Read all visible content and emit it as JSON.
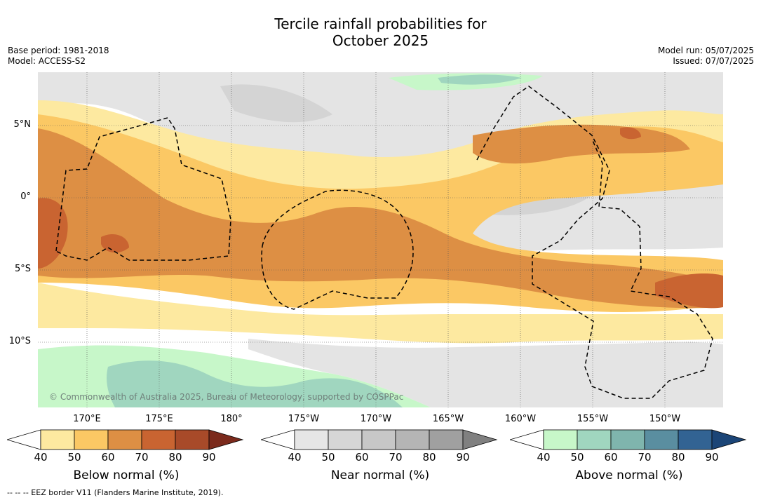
{
  "title_line1": "Tercile rainfall probabilities for",
  "title_line2": "October 2025",
  "meta_left": {
    "base_period": "Base period: 1981-2018",
    "model": "Model: ACCESS-S2"
  },
  "meta_right": {
    "model_run": "Model run: 05/07/2025",
    "issued": "Issued: 07/07/2025"
  },
  "lon_ticks": [
    "170°E",
    "175°E",
    "180°",
    "175°W",
    "170°W",
    "165°W",
    "160°W",
    "155°W",
    "150°W"
  ],
  "lat_ticks": [
    "5°N",
    "0°",
    "5°S",
    "10°S"
  ],
  "copyright": "© Commonwealth of Australia 2025, Bureau of Meteorology, supported by COSPPac",
  "eez_note": "-- -- -- EEZ border V11 (Flanders Marine Institute, 2019).",
  "colorbars": [
    {
      "label": "Below normal (%)",
      "ticks": [
        "40",
        "50",
        "60",
        "70",
        "80",
        "90"
      ],
      "colors": [
        "#fde9a0",
        "#fbc864",
        "#dd8f44",
        "#c96431",
        "#a84a29",
        "#7b2a1c"
      ]
    },
    {
      "label": "Near normal (%)",
      "ticks": [
        "40",
        "50",
        "60",
        "70",
        "80",
        "90"
      ],
      "colors": [
        "#e6e6e6",
        "#d6d6d6",
        "#c7c7c7",
        "#b5b5b5",
        "#a0a0a0",
        "#808080"
      ]
    },
    {
      "label": "Above normal (%)",
      "ticks": [
        "40",
        "50",
        "60",
        "70",
        "80",
        "90"
      ],
      "colors": [
        "#c7f7c9",
        "#a0d6bf",
        "#7fb5ad",
        "#5a8ea0",
        "#326393",
        "#1b4577"
      ]
    }
  ]
}
